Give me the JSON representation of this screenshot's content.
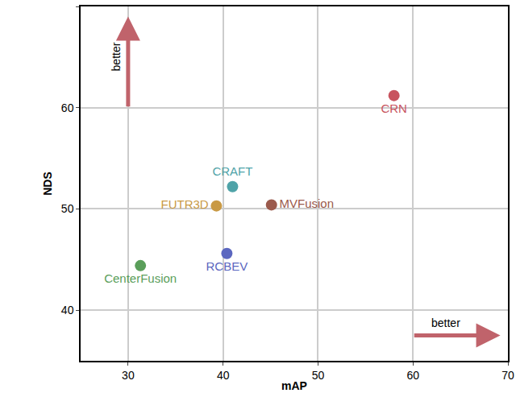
{
  "chart_data": {
    "type": "scatter",
    "x_label": "mAP",
    "y_label": "NDS",
    "series": [
      {
        "name": "CRN",
        "color": "#c8545f",
        "x": [
          58.0
        ],
        "values": [
          61.2
        ]
      },
      {
        "name": "CRAFT",
        "color": "#4fa3a8",
        "x": [
          41.0
        ],
        "values": [
          52.2
        ]
      },
      {
        "name": "FUTR3D",
        "color": "#c99a45",
        "x": [
          39.3
        ],
        "values": [
          50.3
        ]
      },
      {
        "name": "MVFusion",
        "color": "#9b5a4c",
        "x": [
          45.1
        ],
        "values": [
          50.4
        ]
      },
      {
        "name": "RCBEV",
        "color": "#5b67c0",
        "x": [
          40.4
        ],
        "values": [
          45.6
        ]
      },
      {
        "name": "CenterFusion",
        "color": "#5a9e5a",
        "x": [
          31.3
        ],
        "values": [
          44.4
        ]
      }
    ],
    "xlim": [
      25,
      70
    ],
    "xticks": [
      30,
      40,
      50,
      60,
      70
    ],
    "ylim": [
      35,
      70
    ],
    "yticks": [
      40,
      50,
      60,
      70
    ],
    "grid": true,
    "annotations": [
      "better",
      "better"
    ]
  }
}
